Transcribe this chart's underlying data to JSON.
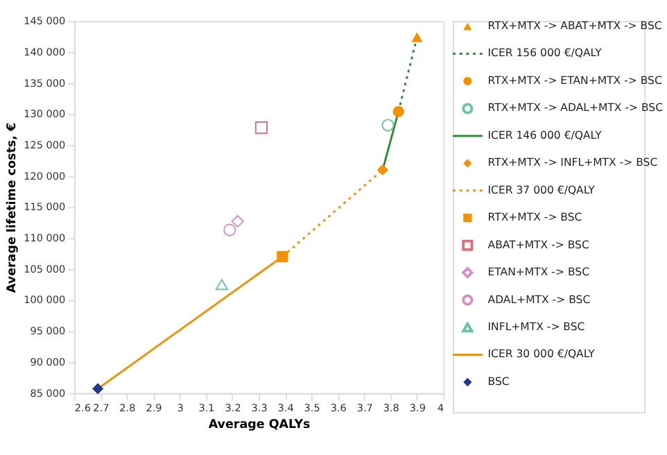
{
  "chart_data": {
    "type": "scatter",
    "xlabel": "Average QALYs",
    "ylabel": "Average lifetime costs, €",
    "xlim": [
      2.6,
      4
    ],
    "ylim": [
      85000,
      145000
    ],
    "xticks": [
      2.6,
      2.7,
      2.8,
      2.9,
      3,
      3.1,
      3.2,
      3.3,
      3.4,
      3.5,
      3.6,
      3.7,
      3.8,
      3.9,
      4
    ],
    "yticks": [
      {
        "value": 85000,
        "label": "85 000"
      },
      {
        "value": 90000,
        "label": "90 000"
      },
      {
        "value": 95000,
        "label": "95 000"
      },
      {
        "value": 100000,
        "label": "100 000"
      },
      {
        "value": 105000,
        "label": "105 000"
      },
      {
        "value": 110000,
        "label": "110 000"
      },
      {
        "value": 115000,
        "label": "115 000"
      },
      {
        "value": 120000,
        "label": "120 000"
      },
      {
        "value": 125000,
        "label": "125 000"
      },
      {
        "value": 130000,
        "label": "130 000"
      },
      {
        "value": 135000,
        "label": "135 000"
      },
      {
        "value": 140000,
        "label": "140 000"
      },
      {
        "value": 145000,
        "label": "145 000"
      }
    ],
    "grid": false,
    "legend": "right",
    "series": [
      {
        "name": "RTX+MTX -> ABAT+MTX -> BSC",
        "type": "scatter",
        "marker": "triangle",
        "color": "#f39200",
        "x": [
          3.9
        ],
        "values": [
          142400
        ]
      },
      {
        "name": "ICER 156 000 €/QALY",
        "type": "line",
        "line_style": "dotted",
        "color": "#2e8b3a",
        "x": [
          3.83,
          3.9
        ],
        "values": [
          130400,
          142400
        ]
      },
      {
        "name": "RTX+MTX -> ETAN+MTX -> BSC",
        "type": "scatter",
        "marker": "circle",
        "color": "#f39200",
        "x": [
          3.83
        ],
        "values": [
          130400
        ]
      },
      {
        "name": "RTX+MTX -> ADAL+MTX -> BSC",
        "type": "scatter",
        "marker": "circle-open",
        "color": "#6cc3a0",
        "x": [
          3.79
        ],
        "values": [
          128200
        ]
      },
      {
        "name": "ICER 146 000 €/QALY",
        "type": "line",
        "line_style": "solid",
        "color": "#2e8b3a",
        "x": [
          3.77,
          3.83
        ],
        "values": [
          121000,
          130400
        ]
      },
      {
        "name": "RTX+MTX -> INFL+MTX -> BSC",
        "type": "scatter",
        "marker": "diamond",
        "color": "#f39200",
        "x": [
          3.77
        ],
        "values": [
          121000
        ]
      },
      {
        "name": "ICER 37 000 €/QALY",
        "type": "line",
        "line_style": "dotted",
        "color": "#f39200",
        "x": [
          3.39,
          3.77
        ],
        "values": [
          107000,
          121000
        ]
      },
      {
        "name": "RTX+MTX -> BSC",
        "type": "scatter",
        "marker": "square",
        "color": "#f39200",
        "x": [
          3.39
        ],
        "values": [
          107000
        ]
      },
      {
        "name": "ABAT+MTX -> BSC",
        "type": "scatter",
        "marker": "square-open",
        "color": "#d9707a",
        "x": [
          3.31
        ],
        "values": [
          127800
        ]
      },
      {
        "name": "ETAN+MTX -> BSC",
        "type": "scatter",
        "marker": "diamond-open",
        "color": "#d58fc5",
        "x": [
          3.22
        ],
        "values": [
          112700
        ]
      },
      {
        "name": "ADAL+MTX -> BSC",
        "type": "scatter",
        "marker": "circle-open",
        "color": "#d58fc5",
        "x": [
          3.19
        ],
        "values": [
          111300
        ]
      },
      {
        "name": "INFL+MTX -> BSC",
        "type": "scatter",
        "marker": "triangle-open",
        "color": "#6cc3a0",
        "x": [
          3.16
        ],
        "values": [
          102500
        ]
      },
      {
        "name": "ICER 30 000 €/QALY",
        "type": "line",
        "line_style": "solid",
        "color": "#f39200",
        "x": [
          2.69,
          3.39
        ],
        "values": [
          85700,
          107000
        ]
      },
      {
        "name": "BSC",
        "type": "scatter",
        "marker": "diamond",
        "color": "#1f3a8a",
        "x": [
          2.69
        ],
        "values": [
          85700
        ]
      }
    ]
  }
}
